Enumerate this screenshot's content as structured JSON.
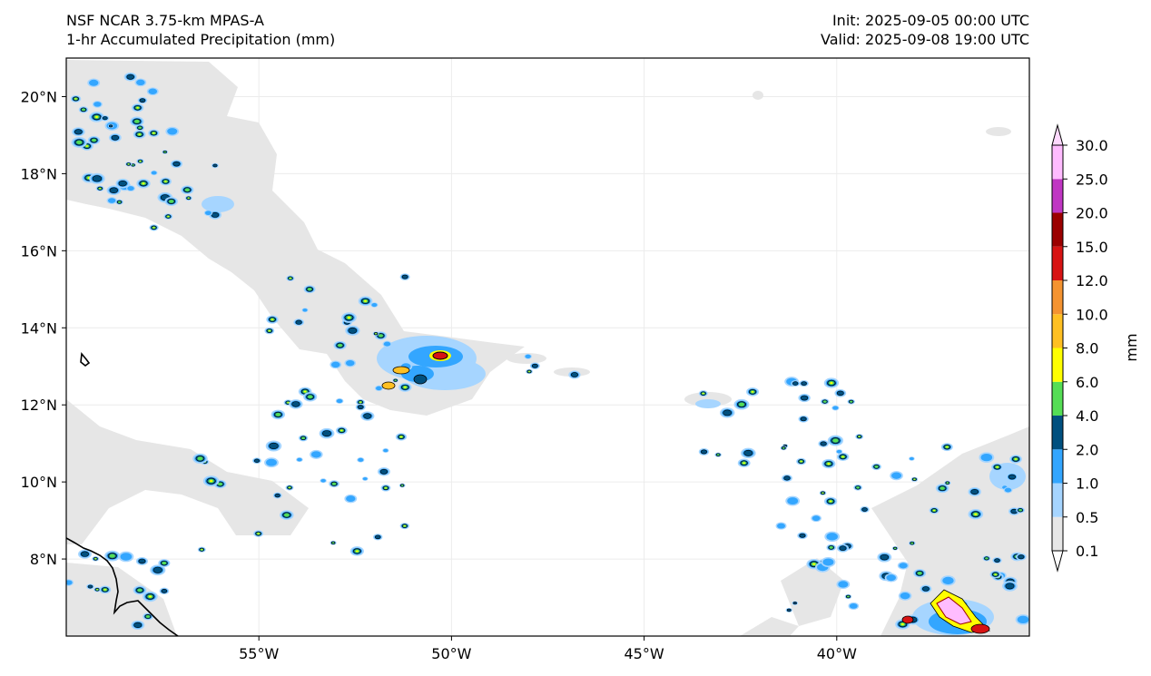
{
  "header": {
    "model": "NSF NCAR 3.75-km MPAS-A",
    "field": "1-hr Accumulated Precipitation (mm)",
    "init": "Init: 2025-09-05 00:00 UTC",
    "valid": "Valid: 2025-09-08 19:00 UTC"
  },
  "map": {
    "lon_range": [
      -60,
      -35
    ],
    "lat_range": [
      6,
      21
    ],
    "lon_ticks": [
      {
        "value": -55,
        "label": "55°W"
      },
      {
        "value": -50,
        "label": "50°W"
      },
      {
        "value": -45,
        "label": "45°W"
      },
      {
        "value": -40,
        "label": "40°W"
      }
    ],
    "lat_ticks": [
      {
        "value": 8,
        "label": "8°N"
      },
      {
        "value": 10,
        "label": "10°N"
      },
      {
        "value": 12,
        "label": "12°N"
      },
      {
        "value": 14,
        "label": "14°N"
      },
      {
        "value": 16,
        "label": "16°N"
      },
      {
        "value": 18,
        "label": "18°N"
      },
      {
        "value": 20,
        "label": "20°N"
      }
    ],
    "gridlines": true
  },
  "colorbar": {
    "label": "mm",
    "ticks": [
      "0.1",
      "0.5",
      "1.0",
      "2.0",
      "4.0",
      "6.0",
      "8.0",
      "10.0",
      "12.0",
      "15.0",
      "20.0",
      "25.0",
      "30.0"
    ],
    "colors": [
      "#e6e6e6",
      "#a6d5ff",
      "#33a6ff",
      "#00507f",
      "#55dd55",
      "#ffff00",
      "#ffc022",
      "#f49330",
      "#d71313",
      "#9b0000",
      "#c036c3",
      "#ffbcff"
    ],
    "extend": "both"
  }
}
